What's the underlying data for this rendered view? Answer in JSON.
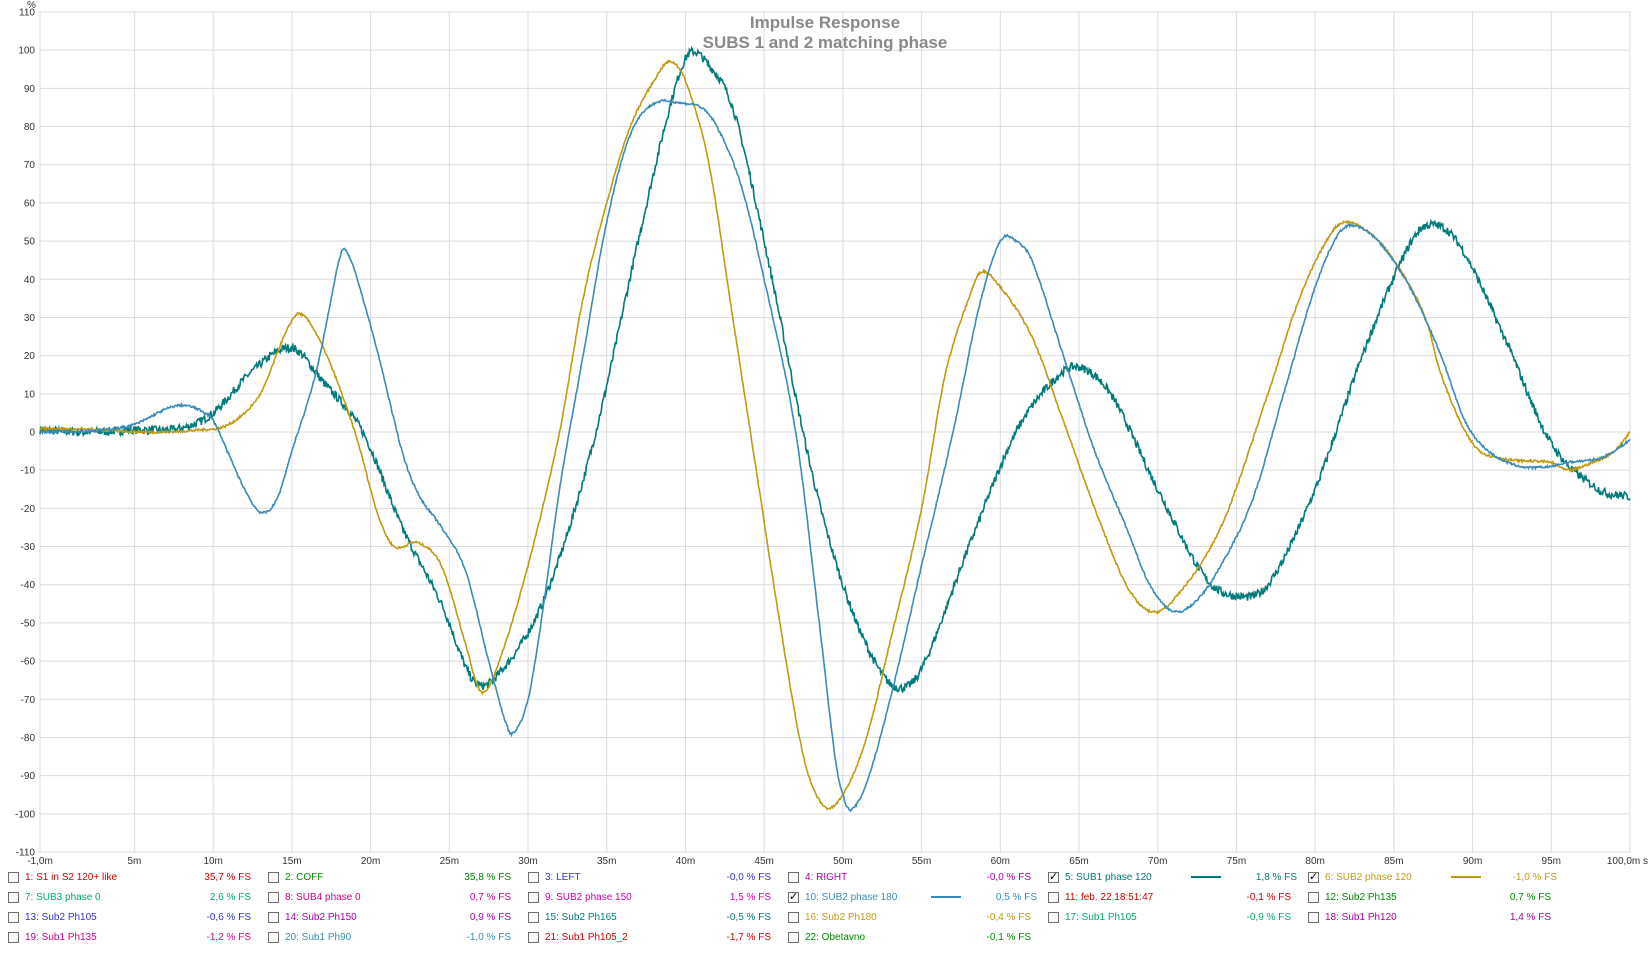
{
  "chart_data": {
    "type": "line",
    "title": "Impulse Response",
    "subtitle": "SUBS 1 and 2 matching phase",
    "y_unit": "%",
    "ylim": [
      -110,
      110
    ],
    "xlim": [
      -1,
      100
    ],
    "y_ticks": [
      110,
      100,
      90,
      80,
      70,
      60,
      50,
      40,
      30,
      20,
      10,
      0,
      -10,
      -20,
      -30,
      -40,
      -50,
      -60,
      -70,
      -80,
      -90,
      -100,
      -110
    ],
    "x_ticks": [
      {
        "v": -1,
        "label": "-1,0m"
      },
      {
        "v": 5,
        "label": "5m"
      },
      {
        "v": 10,
        "label": "10m"
      },
      {
        "v": 15,
        "label": "15m"
      },
      {
        "v": 20,
        "label": "20m"
      },
      {
        "v": 25,
        "label": "25m"
      },
      {
        "v": 30,
        "label": "30m"
      },
      {
        "v": 35,
        "label": "35m"
      },
      {
        "v": 40,
        "label": "40m"
      },
      {
        "v": 45,
        "label": "45m"
      },
      {
        "v": 50,
        "label": "50m"
      },
      {
        "v": 55,
        "label": "55m"
      },
      {
        "v": 60,
        "label": "60m"
      },
      {
        "v": 65,
        "label": "65m"
      },
      {
        "v": 70,
        "label": "70m"
      },
      {
        "v": 75,
        "label": "75m"
      },
      {
        "v": 80,
        "label": "80m"
      },
      {
        "v": 85,
        "label": "85m"
      },
      {
        "v": 90,
        "label": "90m"
      },
      {
        "v": 95,
        "label": "95m"
      },
      {
        "v": 100,
        "label": "100,0m s"
      }
    ],
    "grid": true,
    "series": [
      {
        "name": "5: SUB1 phase 120",
        "color": "#007a7a",
        "noisy": true,
        "points": [
          [
            -1,
            0.5
          ],
          [
            2,
            0
          ],
          [
            5,
            0.5
          ],
          [
            8,
            1
          ],
          [
            10,
            5
          ],
          [
            12.5,
            16
          ],
          [
            15,
            22
          ],
          [
            17,
            13
          ],
          [
            19.5,
            0
          ],
          [
            22,
            -25
          ],
          [
            24.5,
            -45
          ],
          [
            26.5,
            -65
          ],
          [
            28,
            -64
          ],
          [
            31,
            -44
          ],
          [
            34,
            -5
          ],
          [
            37,
            50
          ],
          [
            39,
            85
          ],
          [
            40.2,
            99
          ],
          [
            41.5,
            96
          ],
          [
            43,
            85
          ],
          [
            45,
            50
          ],
          [
            48,
            -10
          ],
          [
            50,
            -40
          ],
          [
            52,
            -60
          ],
          [
            53.5,
            -67
          ],
          [
            55,
            -62
          ],
          [
            58,
            -30
          ],
          [
            61,
            0
          ],
          [
            63.5,
            14
          ],
          [
            65,
            17
          ],
          [
            67,
            10
          ],
          [
            70,
            -15
          ],
          [
            73,
            -38
          ],
          [
            75,
            -43
          ],
          [
            77,
            -40
          ],
          [
            80,
            -15
          ],
          [
            83,
            20
          ],
          [
            85.5,
            45
          ],
          [
            87,
            54
          ],
          [
            89,
            50
          ],
          [
            92,
            25
          ],
          [
            95,
            -3
          ],
          [
            98,
            -15
          ],
          [
            100,
            -17
          ]
        ]
      },
      {
        "name": "6: SUB2 phase 120",
        "color": "#c09a10",
        "noisy": false,
        "points": [
          [
            -1,
            1
          ],
          [
            3,
            0.5
          ],
          [
            6,
            0
          ],
          [
            9,
            0.5
          ],
          [
            11,
            2
          ],
          [
            13,
            10
          ],
          [
            14.5,
            25
          ],
          [
            15.5,
            31
          ],
          [
            17,
            22
          ],
          [
            19,
            0
          ],
          [
            20.5,
            -22
          ],
          [
            21.5,
            -30
          ],
          [
            23,
            -29
          ],
          [
            24.5,
            -35
          ],
          [
            26,
            -55
          ],
          [
            27,
            -68
          ],
          [
            28,
            -62
          ],
          [
            30,
            -35
          ],
          [
            32,
            0
          ],
          [
            33.5,
            35
          ],
          [
            35,
            60
          ],
          [
            36.5,
            80
          ],
          [
            38,
            92
          ],
          [
            39,
            97
          ],
          [
            40,
            92
          ],
          [
            41.5,
            70
          ],
          [
            43,
            30
          ],
          [
            44.5,
            -10
          ],
          [
            46,
            -50
          ],
          [
            47.5,
            -85
          ],
          [
            48.8,
            -98
          ],
          [
            50,
            -95
          ],
          [
            51.5,
            -80
          ],
          [
            53,
            -55
          ],
          [
            55,
            -20
          ],
          [
            56.5,
            15
          ],
          [
            58,
            35
          ],
          [
            58.8,
            42
          ],
          [
            60,
            38
          ],
          [
            62,
            25
          ],
          [
            64,
            3
          ],
          [
            66,
            -20
          ],
          [
            68,
            -40
          ],
          [
            69.5,
            -47
          ],
          [
            71,
            -44
          ],
          [
            74,
            -25
          ],
          [
            77,
            10
          ],
          [
            79,
            35
          ],
          [
            81,
            52
          ],
          [
            82,
            55
          ],
          [
            83.5,
            52
          ],
          [
            85,
            45
          ],
          [
            87,
            30
          ],
          [
            88,
            15
          ],
          [
            90,
            -3
          ],
          [
            92,
            -7
          ],
          [
            95,
            -8
          ],
          [
            96,
            -10
          ],
          [
            97,
            -9
          ],
          [
            99,
            -5
          ],
          [
            100,
            0
          ]
        ]
      },
      {
        "name": "10: SUB2 phase 180",
        "color": "#3a8bb8",
        "noisy": false,
        "points": [
          [
            -1,
            0
          ],
          [
            3,
            0.5
          ],
          [
            5,
            2
          ],
          [
            7,
            6
          ],
          [
            8,
            7
          ],
          [
            9,
            6
          ],
          [
            10,
            3
          ],
          [
            11,
            -6
          ],
          [
            12,
            -15
          ],
          [
            13,
            -21
          ],
          [
            14,
            -18
          ],
          [
            15,
            -5
          ],
          [
            16.5,
            15
          ],
          [
            17.5,
            35
          ],
          [
            18,
            45
          ],
          [
            18.3,
            48
          ],
          [
            19,
            42
          ],
          [
            20.5,
            20
          ],
          [
            22,
            -5
          ],
          [
            23,
            -16
          ],
          [
            24.5,
            -25
          ],
          [
            26,
            -36
          ],
          [
            27.5,
            -60
          ],
          [
            28.5,
            -75
          ],
          [
            29,
            -79
          ],
          [
            30,
            -70
          ],
          [
            31,
            -45
          ],
          [
            32,
            -15
          ],
          [
            33.5,
            20
          ],
          [
            35,
            55
          ],
          [
            36.5,
            78
          ],
          [
            38,
            86
          ],
          [
            40,
            86
          ],
          [
            41,
            85
          ],
          [
            42,
            80
          ],
          [
            43.5,
            65
          ],
          [
            45,
            40
          ],
          [
            47,
            0
          ],
          [
            48.5,
            -50
          ],
          [
            49.5,
            -85
          ],
          [
            50,
            -95
          ],
          [
            50.5,
            -99
          ],
          [
            51.5,
            -92
          ],
          [
            53,
            -70
          ],
          [
            55,
            -35
          ],
          [
            57,
            0
          ],
          [
            58.5,
            30
          ],
          [
            59.5,
            45
          ],
          [
            60.2,
            51
          ],
          [
            61,
            50
          ],
          [
            62,
            45
          ],
          [
            64,
            20
          ],
          [
            66,
            -5
          ],
          [
            68,
            -25
          ],
          [
            69.5,
            -40
          ],
          [
            71,
            -47
          ],
          [
            72.5,
            -44
          ],
          [
            74,
            -35
          ],
          [
            76,
            -18
          ],
          [
            78,
            10
          ],
          [
            80,
            38
          ],
          [
            81.5,
            52
          ],
          [
            82.5,
            54
          ],
          [
            84,
            50
          ],
          [
            86,
            38
          ],
          [
            88,
            20
          ],
          [
            89.5,
            3
          ],
          [
            91,
            -5
          ],
          [
            93,
            -9
          ],
          [
            95,
            -9
          ],
          [
            96,
            -8
          ],
          [
            98,
            -7
          ],
          [
            99,
            -5
          ],
          [
            100,
            -2
          ]
        ]
      }
    ]
  },
  "legend": [
    {
      "label": "1: S1 in S2 120+ like",
      "value": "35,7 % FS",
      "color": "#cc0000",
      "checked": false
    },
    {
      "label": "2: COFF",
      "value": "35,8 % FS",
      "color": "#008800",
      "checked": false
    },
    {
      "label": "3: LEFT",
      "value": "-0,0 % FS",
      "color": "#3333cc",
      "checked": false
    },
    {
      "label": "4: RIGHT",
      "value": "-0,0 % FS",
      "color": "#aa00aa",
      "checked": false
    },
    {
      "label": "5: SUB1 phase 120",
      "value": "1,8 % FS",
      "color": "#007a7a",
      "checked": true
    },
    {
      "label": "6: SUB2 phase 120",
      "value": "-1,0 % FS",
      "color": "#c09a10",
      "checked": true
    },
    {
      "label": "7: SUB3 phase 0",
      "value": "2,6 % FS",
      "color": "#00aa66",
      "checked": false
    },
    {
      "label": "8: SUB4 phase 0",
      "value": "0,7 % FS",
      "color": "#cc0088",
      "checked": false
    },
    {
      "label": "9: SUB2 phase 150",
      "value": "1,5 % FS",
      "color": "#cc00aa",
      "checked": false
    },
    {
      "label": "10: SUB2 phase 180",
      "value": "0,5 % FS",
      "color": "#3a8bb8",
      "checked": true
    },
    {
      "label": "11: feb. 22 18:51:47",
      "value": "-0,1 % FS",
      "color": "#cc0000",
      "checked": false
    },
    {
      "label": "12: Sub2 Ph135",
      "value": "0,7 % FS",
      "color": "#008800",
      "checked": false
    },
    {
      "label": "13: Sub2 Ph105",
      "value": "-0,6 % FS",
      "color": "#3333cc",
      "checked": false
    },
    {
      "label": "14: Sub2 Ph150",
      "value": "0,9 % FS",
      "color": "#aa00aa",
      "checked": false
    },
    {
      "label": "15: Sub2 Ph165",
      "value": "-0,5 % FS",
      "color": "#007a7a",
      "checked": false
    },
    {
      "label": "16: Sub2 Ph180",
      "value": "-0,4 % FS",
      "color": "#c09a10",
      "checked": false
    },
    {
      "label": "17: Sub1 Ph105",
      "value": "-0,9 % FS",
      "color": "#00aa66",
      "checked": false
    },
    {
      "label": "18: Sub1 Ph120",
      "value": "1,4 % FS",
      "color": "#aa00aa",
      "checked": false
    },
    {
      "label": "19: Sub1 Ph135",
      "value": "-1,2 % FS",
      "color": "#cc0088",
      "checked": false
    },
    {
      "label": "20: Sub1 Ph90",
      "value": "-1,0 % FS",
      "color": "#3a8bb8",
      "checked": false
    },
    {
      "label": "21: Sub1 Ph105_2",
      "value": "-1,7 % FS",
      "color": "#cc0000",
      "checked": false
    },
    {
      "label": "22: Obetavno",
      "value": "-0,1 % FS",
      "color": "#008800",
      "checked": false
    }
  ]
}
